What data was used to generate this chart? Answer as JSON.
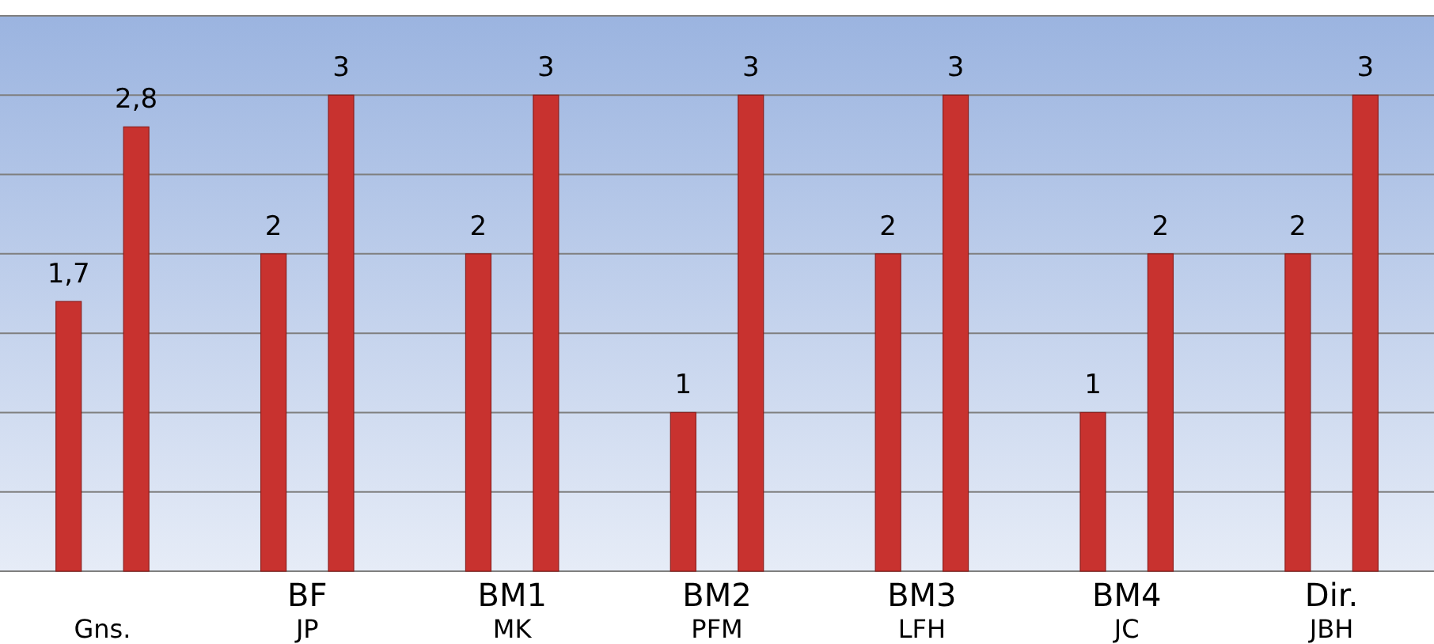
{
  "chart_data": {
    "type": "bar",
    "categories": [
      "Gns.",
      "JP",
      "MK",
      "PFM",
      "LFH",
      "JC",
      "JBH"
    ],
    "series": [
      {
        "color": "#c8322f",
        "values": [
          1.7,
          2,
          2,
          1,
          2,
          1,
          2
        ],
        "value_labels": [
          "1,7",
          "2",
          "2",
          "1",
          "2",
          "1",
          "2"
        ]
      },
      {
        "color": "#c8322f",
        "values": [
          2.8,
          3,
          3,
          3,
          3,
          2,
          3
        ],
        "value_labels": [
          "2,8",
          "3",
          "3",
          "3",
          "3",
          "2",
          "3"
        ]
      }
    ],
    "ylim": [
      0,
      3.5
    ],
    "yticks": [
      {
        "value": 0,
        "label": null
      },
      {
        "value": 0.5,
        "label": null
      },
      {
        "value": 1,
        "label": null
      },
      {
        "value": 1.5,
        "label": null
      },
      {
        "value": 2,
        "label": null
      },
      {
        "value": 2.5,
        "label": null
      },
      {
        "value": 3,
        "label": null
      },
      {
        "value": 3.5,
        "label": null
      }
    ],
    "grid": "y",
    "tick_labels": "x",
    "data_labels": true,
    "annotations": [
      "BF",
      "BM1",
      "BM2",
      "BM3",
      "BM4",
      "Dir."
    ]
  }
}
